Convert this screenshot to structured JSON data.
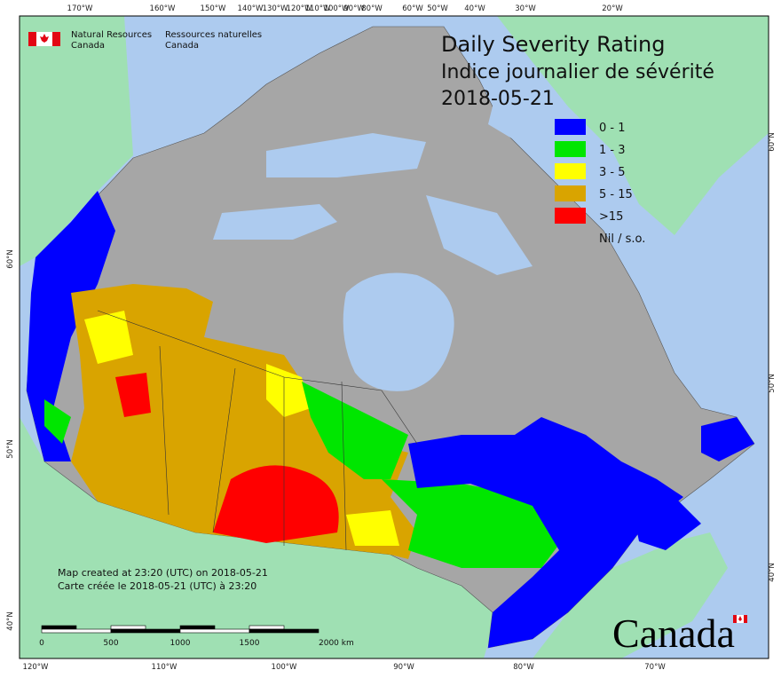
{
  "header": {
    "title_en": "Daily Severity Rating",
    "title_fr": "Indice journalier de sévérité",
    "date": "2018-05-21"
  },
  "agency": {
    "en_line1": "Natural Resources",
    "en_line2": "Canada",
    "fr_line1": "Ressources naturelles",
    "fr_line2": "Canada"
  },
  "legend": [
    {
      "label": "0 - 1",
      "color": "#0000ff"
    },
    {
      "label": "1 - 3",
      "color": "#00e600"
    },
    {
      "label": "3 - 5",
      "color": "#ffff00"
    },
    {
      "label": "5 - 15",
      "color": "#d9a400"
    },
    {
      "label": ">15",
      "color": "#ff0000"
    },
    {
      "label": "Nil / s.o.",
      "color": "#a6a6a6"
    }
  ],
  "notes": [
    "Map created at 23:20 (UTC) on 2018-05-21",
    "Carte créée le 2018-05-21 (UTC) à 23:20"
  ],
  "scale_bar": [
    "0",
    "500",
    "1000",
    "1500",
    "2000 km"
  ],
  "graticule": {
    "top": [
      "170°W",
      "160°W",
      "150°W",
      "140°W",
      "130°W",
      "120°W",
      "110°W",
      "100°W",
      "90°W",
      "80°W",
      "60°W",
      "50°W",
      "40°W",
      "30°W",
      "20°W"
    ],
    "bottom": [
      "120°W",
      "110°W",
      "100°W",
      "90°W",
      "80°W",
      "70°W"
    ],
    "left": [
      "60°N",
      "50°N",
      "40°N"
    ],
    "right": [
      "60°N",
      "50°N",
      "40°N"
    ]
  },
  "wordmark": "Canada"
}
